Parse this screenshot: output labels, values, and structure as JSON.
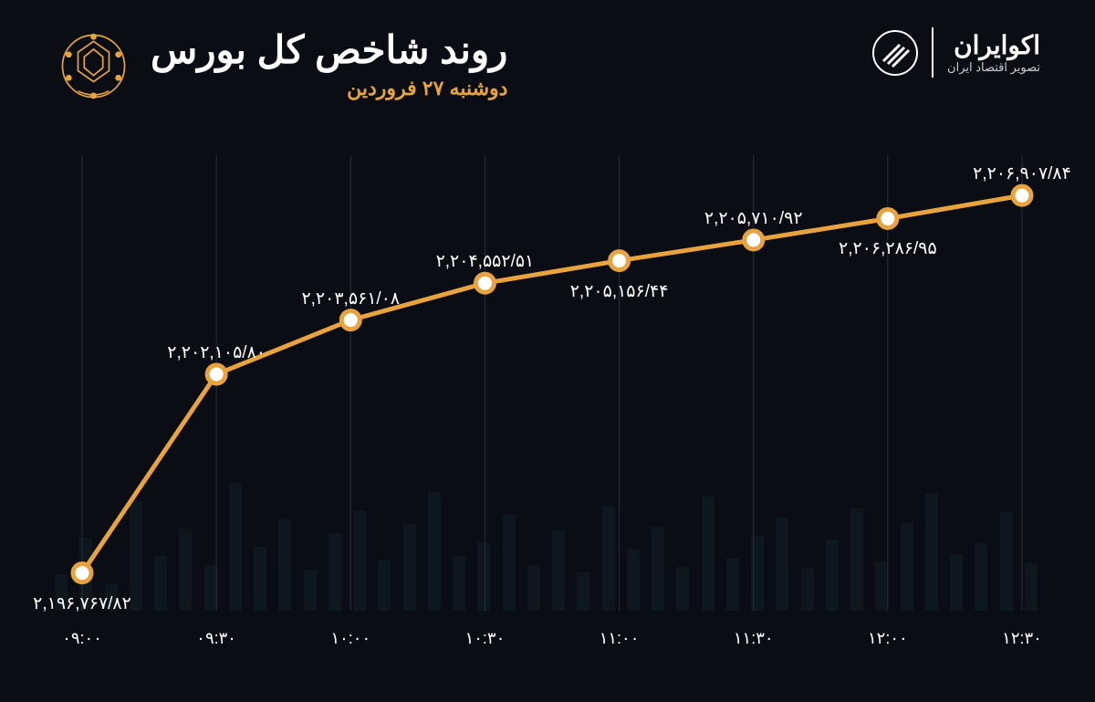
{
  "header": {
    "title": "روند شاخص کل بورس",
    "subtitle": "دوشنبه ۲۷ فروردین",
    "brand_name": "اکوایران",
    "brand_tagline": "تصویر اقتصاد ایران"
  },
  "chart": {
    "type": "line",
    "background_color": "#0a0e14",
    "line_color": "#e8a33d",
    "line_width": 5,
    "marker_size": 10,
    "marker_fill": "#ffffff",
    "marker_stroke": "#e8a33d",
    "marker_stroke_width": 5,
    "gridline_color": "#2a2e35",
    "gridline_width": 1,
    "text_color": "#ffffff",
    "label_fontsize": 19,
    "xlabel_fontsize": 18,
    "x_labels": [
      "۰۹:۰۰",
      "۰۹:۳۰",
      "۱۰:۰۰",
      "۱۰:۳۰",
      "۱۱:۰۰",
      "۱۱:۳۰",
      "۱۲:۰۰",
      "۱۲:۳۰"
    ],
    "value_labels": [
      "۲,۱۹۶,۷۶۷/۸۲",
      "۲,۲۰۲,۱۰۵/۸۰",
      "۲,۲۰۳,۵۶۱/۰۸",
      "۲,۲۰۴,۵۵۲/۵۱",
      "۲,۲۰۵,۱۵۶/۴۴",
      "۲,۲۰۵,۷۱۰/۹۲",
      "۲,۲۰۶,۲۸۶/۹۵",
      "۲,۲۰۶,۹۰۷/۸۴"
    ],
    "values_numeric": [
      2196767.82,
      2202105.8,
      2203561.08,
      2204552.51,
      2205156.44,
      2205710.92,
      2206286.95,
      2206907.84
    ],
    "ylim": [
      2196000,
      2207500
    ],
    "label_positions": [
      "below",
      "above",
      "above",
      "above",
      "below",
      "above",
      "below",
      "above"
    ],
    "bg_bar_color": "#2a4a5a",
    "bg_bar_opacity": 0.15
  }
}
